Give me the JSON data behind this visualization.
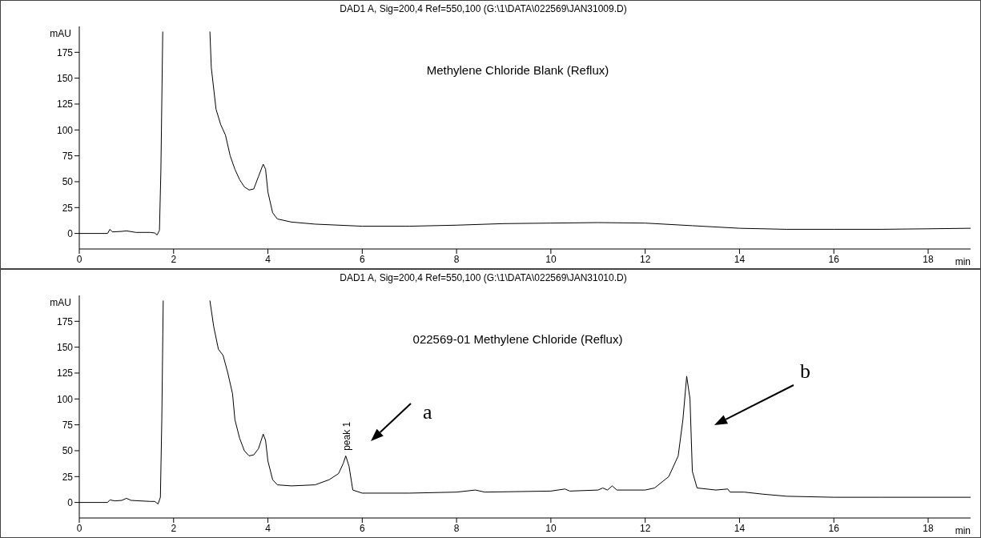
{
  "chart_data": [
    {
      "type": "line",
      "title": "DAD1 A, Sig=200,4 Ref=550,100 (G:\\1\\DATA\\022569\\JAN31009.D)",
      "subtitle": "Methylene Chloride Blank (Reflux)",
      "xlabel": "min",
      "ylabel": "mAU",
      "color": "#000000",
      "marker": "none",
      "xlim": [
        0,
        18.9
      ],
      "xticks": [
        0,
        2,
        4,
        6,
        8,
        10,
        12,
        14,
        16,
        18
      ],
      "ylim": [
        -15,
        200
      ],
      "yticks": [
        0,
        25,
        50,
        75,
        100,
        125,
        150,
        175
      ],
      "x": [
        0,
        0.6,
        0.65,
        0.7,
        0.9,
        1.0,
        1.2,
        1.5,
        1.6,
        1.65,
        1.7,
        1.73,
        1.77,
        2.3,
        2.77,
        2.8,
        2.9,
        3.0,
        3.1,
        3.2,
        3.3,
        3.4,
        3.5,
        3.6,
        3.7,
        3.8,
        3.9,
        3.95,
        4.0,
        4.1,
        4.2,
        4.5,
        5,
        6,
        7,
        8,
        9,
        10,
        11,
        12,
        13,
        14,
        15,
        16,
        17,
        18,
        18.9
      ],
      "values": [
        0,
        0,
        4,
        1.5,
        2,
        2.5,
        1,
        1,
        0.5,
        -1.5,
        3,
        60,
        195,
        null,
        195,
        160,
        120,
        105,
        95,
        75,
        62,
        52,
        45,
        42,
        43,
        55,
        67,
        62,
        40,
        20,
        14,
        11,
        9,
        7,
        7,
        8,
        9.5,
        10,
        10.5,
        10,
        7.5,
        5,
        4,
        4,
        4,
        4.5,
        5
      ]
    },
    {
      "type": "line",
      "title": "DAD1 A, Sig=200,4 Ref=550,100 (G:\\1\\DATA\\022569\\JAN31010.D)",
      "subtitle": "022569-01 Methylene Chloride (Reflux)",
      "xlabel": "min",
      "ylabel": "mAU",
      "color": "#000000",
      "marker": "none",
      "xlim": [
        0,
        18.9
      ],
      "xticks": [
        0,
        2,
        4,
        6,
        8,
        10,
        12,
        14,
        16,
        18
      ],
      "ylim": [
        -15,
        200
      ],
      "yticks": [
        0,
        25,
        50,
        75,
        100,
        125,
        150,
        175
      ],
      "x": [
        0,
        0.6,
        0.65,
        0.75,
        0.9,
        1.0,
        1.1,
        1.5,
        1.6,
        1.67,
        1.72,
        1.75,
        1.78,
        2.3,
        2.77,
        2.85,
        2.95,
        3.05,
        3.15,
        3.25,
        3.3,
        3.4,
        3.5,
        3.6,
        3.7,
        3.8,
        3.9,
        3.95,
        4.0,
        4.1,
        4.2,
        4.5,
        5,
        5.3,
        5.5,
        5.6,
        5.65,
        5.72,
        5.8,
        6,
        7,
        8,
        8.4,
        8.6,
        10,
        10.3,
        10.4,
        11,
        11.1,
        11.2,
        11.3,
        11.4,
        12,
        12.2,
        12.5,
        12.7,
        12.8,
        12.88,
        12.95,
        13.0,
        13.1,
        13.5,
        13.75,
        13.8,
        14.1,
        14.5,
        15,
        16,
        17,
        18,
        18.9
      ],
      "values": [
        0,
        0,
        2.5,
        1.5,
        2,
        4,
        2,
        1,
        1,
        -1.5,
        5,
        80,
        195,
        null,
        195,
        170,
        148,
        142,
        125,
        105,
        80,
        62,
        50,
        45,
        46,
        52,
        66,
        60,
        40,
        22,
        17,
        16,
        17,
        22,
        28,
        38,
        45,
        35,
        12,
        9,
        9,
        10,
        12,
        10,
        11,
        13,
        11,
        12,
        14,
        12,
        16,
        12,
        12,
        14,
        25,
        45,
        80,
        122,
        100,
        30,
        14,
        12,
        13,
        10,
        10,
        8,
        6,
        5,
        5,
        5,
        5
      ],
      "annotations": [
        {
          "text": "peak 1",
          "x": 5.65,
          "y": 45
        },
        "a",
        "b"
      ]
    }
  ]
}
